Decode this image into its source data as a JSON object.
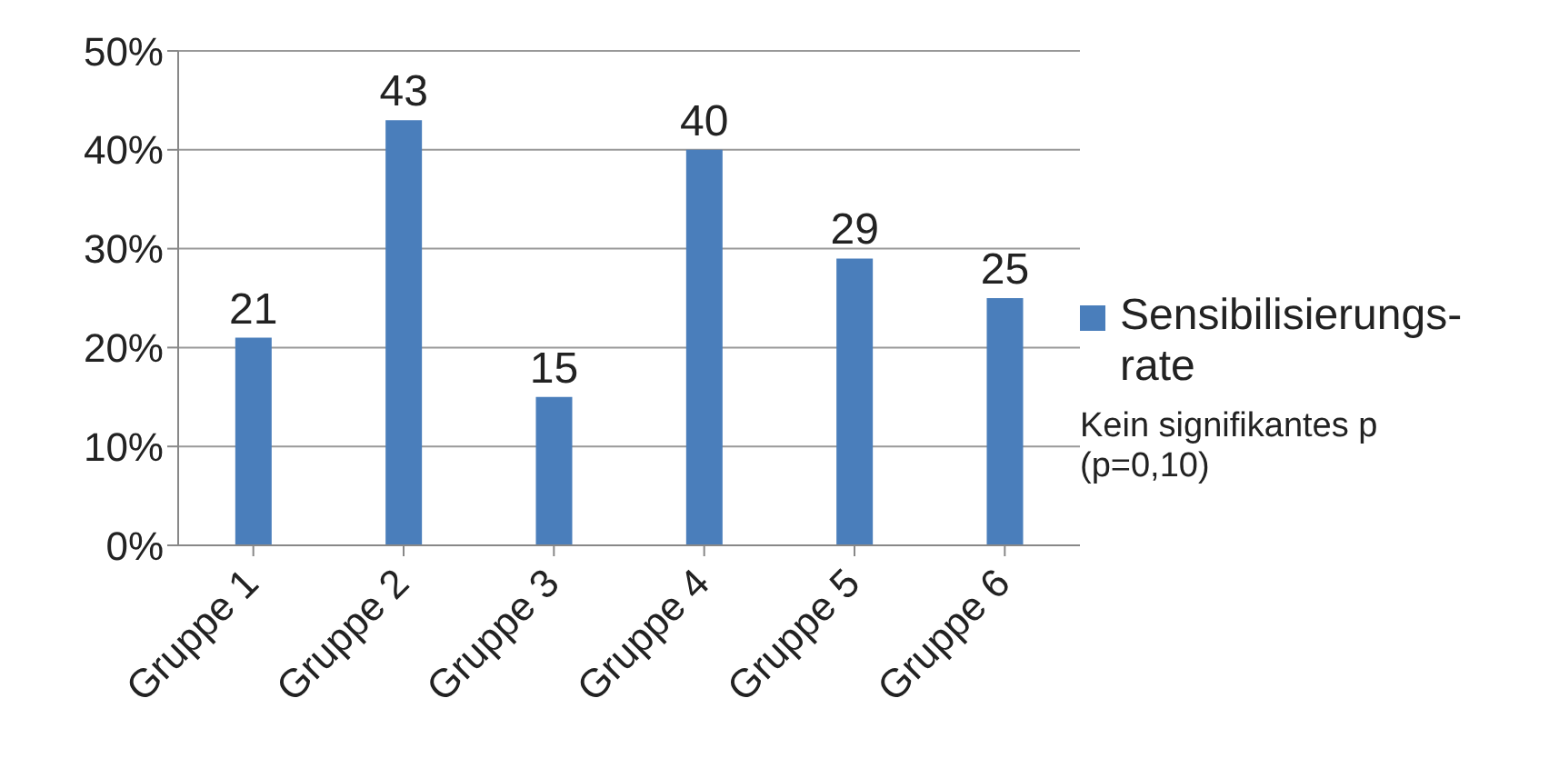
{
  "chart_data": {
    "type": "bar",
    "categories": [
      "Gruppe 1",
      "Gruppe 2",
      "Gruppe 3",
      "Gruppe 4",
      "Gruppe 5",
      "Gruppe 6"
    ],
    "series": [
      {
        "name": "Sensibilisierungs-rate",
        "color": "#4a7ebb",
        "values": [
          21,
          43,
          15,
          40,
          29,
          25
        ]
      }
    ],
    "ylim": [
      0,
      50
    ],
    "yticks": [
      {
        "value": 0,
        "label": "0%"
      },
      {
        "value": 10,
        "label": "10%"
      },
      {
        "value": 20,
        "label": "20%"
      },
      {
        "value": 30,
        "label": "30%"
      },
      {
        "value": 40,
        "label": "40%"
      },
      {
        "value": 50,
        "label": "50%"
      }
    ],
    "grid": "y",
    "legend": "right",
    "data_labels": true,
    "annotations": [
      "Kein signifikantes p (p=0,10)"
    ]
  }
}
